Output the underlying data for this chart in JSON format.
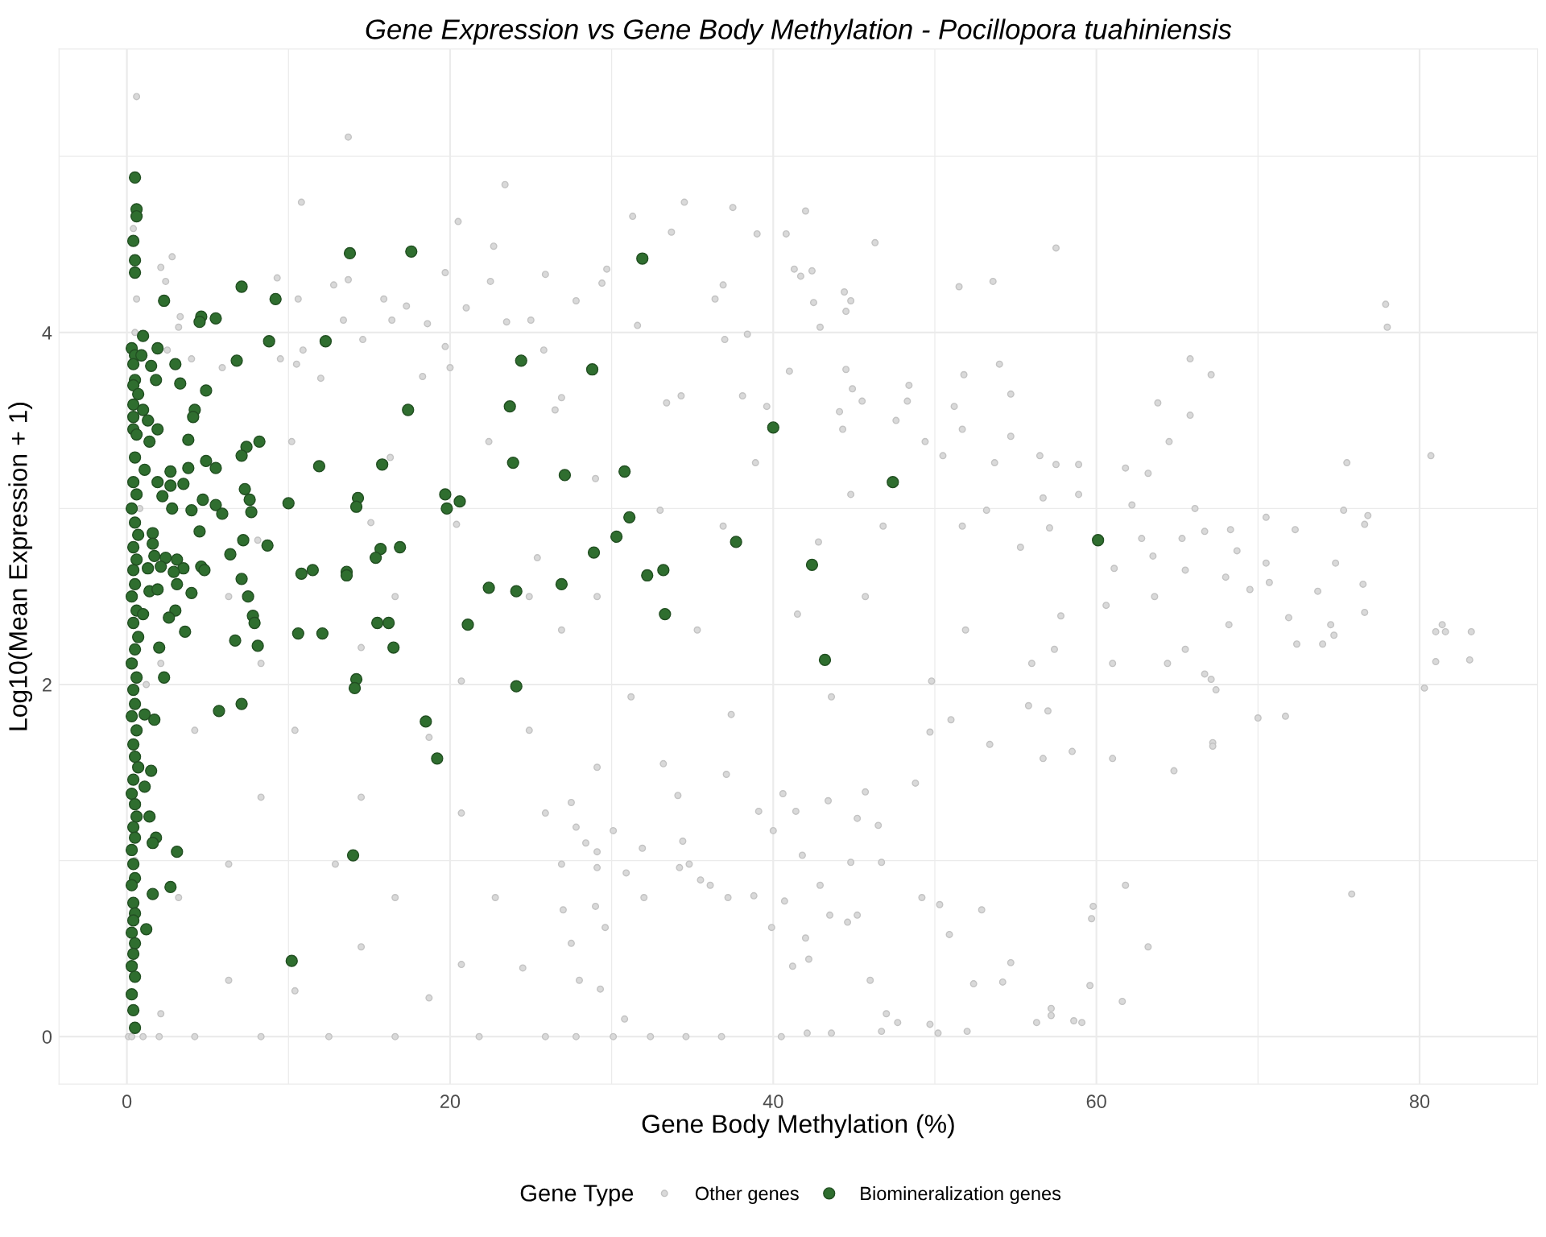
{
  "chart_data": {
    "type": "scatter",
    "title": "Gene Expression vs Gene Body Methylation - Pocillopora tuahiniensis",
    "xlabel": "Gene Body Methylation (%)",
    "ylabel": "Log10(Mean Expression + 1)",
    "legend_title": "Gene Type",
    "xlim": [
      -4.2,
      87.3
    ],
    "ylim": [
      -0.27,
      5.61
    ],
    "xticks": [
      0,
      {
        "value": 10,
        "label": null
      },
      20,
      {
        "value": 30,
        "label": null
      },
      40,
      {
        "value": 50,
        "label": null
      },
      60,
      {
        "value": 70,
        "label": null
      },
      80
    ],
    "yticks": [
      0,
      {
        "value": 1,
        "label": null
      },
      2,
      {
        "value": 3,
        "label": null
      },
      4,
      {
        "value": 5,
        "label": null
      }
    ],
    "grid": true,
    "legend": "bottom",
    "marker": "circle",
    "series": [
      {
        "name": "Other genes",
        "color": "#d9d9d9",
        "x": [
          0.6,
          13.7,
          10.8,
          2.8,
          2.1,
          23.4,
          20.5,
          22.7,
          25.9,
          19.7,
          13.7,
          12.8,
          9.3,
          2.4,
          10.6,
          17.3,
          15.9,
          21.0,
          22.5,
          13.4,
          16.4,
          18.6,
          3.3,
          3.2,
          23.5,
          25.0,
          14.6,
          19.7,
          10.9,
          10.5,
          12.0,
          18.3,
          20.0,
          25.8,
          26.9,
          5.9,
          9.5,
          4.0,
          0.6,
          0.4,
          34.5,
          37.5,
          42.0,
          31.3,
          33.7,
          39.0,
          40.8,
          46.3,
          57.5,
          29.7,
          29.4,
          36.9,
          41.7,
          41.3,
          42.4,
          44.4,
          44.8,
          44.5,
          42.5,
          42.9,
          51.5,
          53.6,
          36.4,
          31.6,
          27.8,
          38.4,
          37.0,
          41.0,
          44.5,
          44.9,
          45.5,
          48.4,
          48.3,
          54.0,
          51.8,
          54.7,
          51.2,
          51.7,
          54.7,
          49.4,
          56.5,
          44.1,
          44.3,
          47.6,
          38.1,
          39.6,
          34.3,
          33.4,
          50.5,
          53.7,
          56.7,
          53.2,
          57.1,
          55.3,
          33.0,
          36.9,
          42.8,
          46.8,
          51.7,
          29.0,
          38.9,
          44.8,
          57.8,
          57.4,
          57.0,
          56.7,
          53.4,
          55.8,
          51.0,
          49.7,
          48.8,
          46.5,
          46.7,
          44.8,
          42.9,
          41.8,
          40.0,
          41.4,
          43.4,
          45.2,
          49.2,
          50.3,
          52.9,
          50.9,
          54.7,
          52.4,
          54.2,
          57.2,
          56.3,
          50.2,
          52.0,
          49.7,
          47.7,
          47.0,
          46.0,
          45.2,
          44.6,
          43.5,
          42.0,
          42.2,
          41.2,
          40.7,
          39.9,
          38.8,
          37.2,
          36.1,
          35.5,
          34.8,
          34.2,
          30.9,
          29.1,
          29.0,
          32.0,
          29.6,
          27.5,
          28.0,
          29.3,
          30.8,
          27.8,
          30.1,
          32.4,
          34.6,
          36.8,
          40.5,
          42.1,
          43.6,
          46.7,
          37.1,
          34.4,
          31.9,
          29.1,
          28.4,
          27.8,
          29.1,
          34.1,
          39.1,
          40.6,
          45.7,
          29.1,
          35.3,
          41.5,
          45.7,
          51.9,
          56.0,
          31.2,
          37.4,
          43.6,
          49.8,
          33.2,
          30.1,
          77.9,
          78.0,
          65.8,
          67.1,
          63.8,
          65.8,
          64.5,
          80.7,
          75.5,
          57.5,
          58.9,
          61.8,
          63.2,
          58.9,
          66.1,
          75.3,
          76.8,
          70.5,
          76.6,
          72.3,
          68.3,
          66.7,
          62.2,
          62.8,
          65.3,
          68.7,
          63.5,
          74.8,
          70.5,
          61.1,
          65.5,
          68.0,
          70.7,
          76.5,
          73.7,
          69.5,
          63.6,
          60.6,
          68.2,
          71.9,
          74.5,
          76.6,
          81.4,
          81.6,
          83.2,
          81.0,
          83.1,
          81.0,
          74.7,
          74.0,
          72.4,
          65.5,
          61.0,
          64.4,
          66.7,
          67.1,
          67.4,
          80.3,
          70.0,
          71.7,
          67.2,
          67.2,
          64.8,
          61.0,
          58.5,
          61.8,
          75.8,
          59.8,
          59.7,
          63.2,
          59.6,
          61.6,
          57.2,
          58.6,
          59.1,
          0.1,
          4.2,
          8.3,
          12.5,
          16.6,
          21.8,
          25.9,
          27.0,
          27.5,
          24.5,
          20.7,
          18.7,
          14.5,
          10.4,
          6.3,
          2.1,
          12.9,
          16.6,
          22.8,
          26.9,
          6.3,
          3.2,
          8.3,
          14.5,
          20.7,
          25.9,
          10.4,
          18.7,
          24.9,
          4.2,
          2.1,
          8.3,
          14.5,
          20.7,
          26.9,
          6.3,
          16.6,
          24.9,
          10.2,
          16.3,
          22.4,
          26.5,
          15.1,
          20.4,
          8.1,
          25.4,
          1.0,
          2.0,
          0.3,
          0.5,
          1.2,
          0.8,
          1.5,
          2.5,
          0.5
        ],
        "values": [
          5.34,
          5.11,
          4.74,
          4.43,
          4.37,
          4.84,
          4.63,
          4.49,
          4.33,
          4.34,
          4.3,
          4.27,
          4.31,
          4.29,
          4.19,
          4.15,
          4.19,
          4.14,
          4.29,
          4.07,
          4.07,
          4.05,
          4.09,
          4.03,
          4.06,
          4.07,
          3.96,
          3.92,
          3.9,
          3.82,
          3.74,
          3.75,
          3.8,
          3.9,
          3.63,
          3.8,
          3.85,
          3.85,
          4.19,
          4.59,
          4.74,
          4.71,
          4.69,
          4.66,
          4.57,
          4.56,
          4.56,
          4.51,
          4.48,
          4.36,
          4.28,
          4.27,
          4.32,
          4.36,
          4.35,
          4.23,
          4.18,
          4.12,
          4.17,
          4.03,
          4.26,
          4.29,
          4.19,
          4.04,
          4.18,
          3.99,
          3.96,
          3.78,
          3.79,
          3.68,
          3.61,
          3.7,
          3.61,
          3.82,
          3.76,
          3.65,
          3.58,
          3.45,
          3.41,
          3.38,
          3.3,
          3.55,
          3.45,
          3.5,
          3.64,
          3.58,
          3.64,
          3.6,
          3.3,
          3.26,
          3.06,
          2.99,
          2.89,
          2.78,
          2.99,
          2.9,
          2.81,
          2.9,
          2.9,
          3.17,
          3.26,
          3.08,
          2.39,
          2.2,
          1.85,
          1.58,
          1.66,
          1.88,
          1.8,
          1.73,
          1.44,
          1.2,
          0.99,
          0.99,
          0.86,
          1.03,
          1.17,
          1.28,
          1.34,
          1.24,
          0.79,
          0.75,
          0.72,
          0.58,
          0.42,
          0.3,
          0.31,
          0.16,
          0.08,
          0.02,
          0.03,
          0.07,
          0.08,
          0.13,
          0.32,
          0.69,
          0.65,
          0.69,
          0.56,
          0.44,
          0.4,
          0.77,
          0.62,
          0.8,
          0.79,
          0.86,
          0.89,
          0.98,
          0.96,
          0.93,
          0.96,
          0.74,
          0.79,
          0.62,
          0.53,
          0.32,
          0.27,
          0.1,
          0,
          0,
          0,
          0,
          0,
          0,
          0.02,
          0.02,
          0.03,
          1.49,
          1.11,
          1.07,
          1.05,
          1.1,
          1.19,
          1.53,
          1.37,
          1.28,
          1.38,
          1.39,
          2.5,
          2.31,
          2.4,
          2.5,
          2.31,
          2.12,
          1.93,
          1.83,
          1.93,
          2.02,
          1.55,
          1.17,
          4.16,
          4.03,
          3.85,
          3.76,
          3.6,
          3.53,
          3.38,
          3.3,
          3.26,
          3.25,
          3.25,
          3.23,
          3.2,
          3.08,
          3.0,
          2.99,
          2.96,
          2.95,
          2.91,
          2.88,
          2.88,
          2.87,
          3.02,
          2.83,
          2.83,
          2.76,
          2.73,
          2.69,
          2.69,
          2.66,
          2.65,
          2.61,
          2.58,
          2.57,
          2.53,
          2.54,
          2.5,
          2.45,
          2.34,
          2.38,
          2.34,
          2.41,
          2.34,
          2.3,
          2.3,
          2.3,
          2.14,
          2.13,
          2.28,
          2.23,
          2.23,
          2.2,
          2.12,
          2.12,
          2.06,
          2.03,
          1.97,
          1.98,
          1.81,
          1.82,
          1.67,
          1.65,
          1.51,
          1.58,
          1.62,
          0.86,
          0.81,
          0.74,
          0.67,
          0.51,
          0.29,
          0.2,
          0.12,
          0.09,
          0.08,
          0,
          0,
          0,
          0,
          0,
          0,
          0,
          0.72,
          1.33,
          0.39,
          0.41,
          0.22,
          0.51,
          0.26,
          0.32,
          0.13,
          0.98,
          0.79,
          0.79,
          0.98,
          0.98,
          0.79,
          1.36,
          1.36,
          1.27,
          1.27,
          1.74,
          1.7,
          1.74,
          1.74,
          2.12,
          2.12,
          2.21,
          2.02,
          2.31,
          2.5,
          2.5,
          2.5,
          3.38,
          3.29,
          3.38,
          3.56,
          2.92,
          2.91,
          2.82,
          2.72,
          0,
          0,
          0,
          1.0,
          2.0,
          3.0,
          3.5,
          3.9,
          4.0
        ]
      },
      {
        "name": "Biomineralization genes",
        "color": "#2f6e2f",
        "x": [
          0.5,
          0.6,
          0.6,
          0.4,
          0.5,
          0.5,
          0.3,
          0.5,
          0.9,
          0.4,
          0.5,
          0.4,
          0.7,
          0.4,
          1.0,
          0.4,
          0.4,
          0.6,
          0.5,
          1.1,
          0.4,
          0.6,
          0.3,
          0.5,
          0.7,
          0.4,
          0.6,
          0.4,
          0.5,
          0.3,
          0.6,
          0.4,
          0.7,
          0.5,
          0.3,
          0.6,
          0.4,
          0.5,
          0.3,
          0.6,
          0.4,
          0.5,
          0.7,
          0.4,
          0.3,
          0.5,
          0.6,
          0.4,
          0.5,
          0.3,
          0.4,
          0.5,
          0.3,
          0.4,
          0.5,
          0.4,
          0.3,
          0.5,
          0.4,
          0.3,
          0.5,
          0.3,
          0.4,
          0.5,
          13.8,
          17.6,
          31.9,
          7.1,
          2.3,
          9.2,
          4.6,
          4.5,
          5.5,
          1.0,
          12.3,
          8.8,
          1.9,
          3.0,
          1.5,
          6.8,
          24.4,
          28.8,
          1.8,
          3.3,
          4.9,
          23.7,
          4.2,
          4.1,
          1.3,
          17.4,
          40.0,
          1.9,
          1.4,
          3.8,
          8.2,
          7.4,
          7.1,
          4.9,
          5.5,
          3.8,
          2.7,
          11.9,
          15.8,
          23.9,
          27.1,
          30.8,
          47.4,
          1.9,
          2.7,
          3.5,
          7.3,
          2.2,
          4.7,
          7.6,
          5.5,
          2.8,
          4.0,
          5.9,
          7.7,
          10.0,
          14.3,
          14.2,
          19.7,
          20.6,
          19.8,
          31.1,
          30.3,
          60.1,
          37.7,
          28.9,
          1.6,
          1.6,
          4.5,
          7.2,
          8.7,
          1.7,
          2.4,
          3.1,
          2.1,
          3.5,
          2.9,
          1.3,
          6.4,
          4.6,
          4.8,
          15.7,
          16.9,
          15.4,
          10.8,
          11.5,
          13.6,
          13.6,
          42.4,
          32.2,
          33.2,
          7.1,
          22.4,
          24.1,
          26.9,
          1.4,
          1.9,
          3.1,
          4.0,
          7.5,
          1.0,
          3.0,
          2.6,
          7.8,
          7.9,
          15.5,
          16.2,
          21.1,
          33.3,
          3.6,
          10.6,
          12.1,
          6.7,
          8.1,
          16.5,
          2.0,
          43.2,
          2.3,
          14.2,
          14.1,
          24.1,
          7.1,
          5.7,
          1.1,
          1.7,
          18.5,
          19.2,
          1.5,
          1.1,
          1.4,
          1.8,
          1.6,
          3.1,
          14.0,
          2.7,
          1.6,
          1.2,
          10.2
        ],
        "values": [
          4.88,
          4.7,
          4.66,
          4.52,
          4.41,
          4.34,
          3.91,
          3.87,
          3.87,
          3.82,
          3.73,
          3.7,
          3.65,
          3.59,
          3.56,
          3.52,
          3.45,
          3.42,
          3.29,
          3.22,
          3.15,
          3.08,
          3.0,
          2.92,
          2.85,
          2.78,
          2.71,
          2.65,
          2.57,
          2.5,
          2.42,
          2.35,
          2.27,
          2.2,
          2.12,
          2.04,
          1.97,
          1.89,
          1.82,
          1.74,
          1.66,
          1.59,
          1.53,
          1.46,
          1.38,
          1.32,
          1.25,
          1.19,
          1.13,
          1.06,
          0.98,
          0.9,
          0.86,
          0.76,
          0.7,
          0.66,
          0.59,
          0.53,
          0.47,
          0.4,
          0.34,
          0.24,
          0.15,
          0.05,
          4.45,
          4.46,
          4.42,
          4.26,
          4.18,
          4.19,
          4.09,
          4.06,
          4.08,
          3.98,
          3.95,
          3.95,
          3.91,
          3.82,
          3.81,
          3.84,
          3.84,
          3.79,
          3.73,
          3.71,
          3.67,
          3.58,
          3.56,
          3.52,
          3.5,
          3.56,
          3.46,
          3.45,
          3.38,
          3.39,
          3.38,
          3.35,
          3.3,
          3.27,
          3.23,
          3.23,
          3.21,
          3.24,
          3.25,
          3.26,
          3.19,
          3.21,
          3.15,
          3.15,
          3.13,
          3.14,
          3.11,
          3.07,
          3.05,
          3.05,
          3.02,
          3.0,
          2.99,
          2.97,
          2.98,
          3.03,
          3.06,
          3.01,
          3.08,
          3.04,
          3.0,
          2.95,
          2.84,
          2.82,
          2.81,
          2.75,
          2.86,
          2.8,
          2.87,
          2.82,
          2.79,
          2.73,
          2.72,
          2.71,
          2.67,
          2.66,
          2.64,
          2.66,
          2.74,
          2.67,
          2.65,
          2.77,
          2.78,
          2.72,
          2.63,
          2.65,
          2.64,
          2.62,
          2.68,
          2.62,
          2.65,
          2.6,
          2.55,
          2.53,
          2.57,
          2.53,
          2.54,
          2.57,
          2.52,
          2.5,
          2.4,
          2.42,
          2.38,
          2.39,
          2.35,
          2.35,
          2.35,
          2.34,
          2.4,
          2.3,
          2.29,
          2.29,
          2.25,
          2.22,
          2.21,
          2.21,
          2.14,
          2.04,
          2.03,
          1.98,
          1.99,
          1.89,
          1.85,
          1.83,
          1.8,
          1.79,
          1.58,
          1.51,
          1.42,
          1.25,
          1.13,
          1.1,
          1.05,
          1.03,
          0.85,
          0.81,
          0.61,
          0.43
        ]
      }
    ]
  }
}
